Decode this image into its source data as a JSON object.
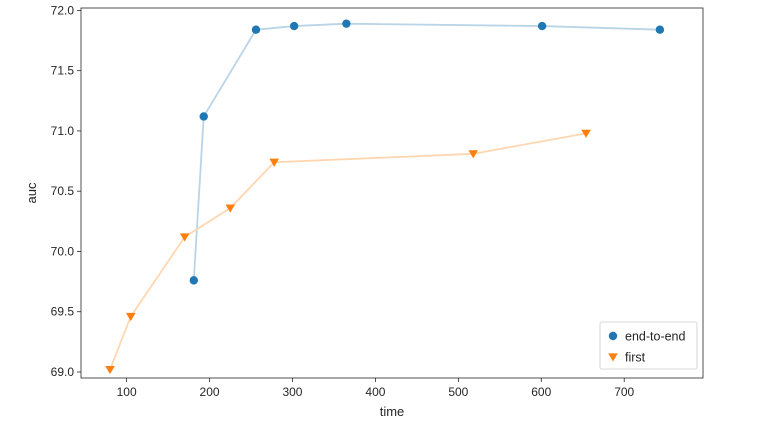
{
  "chart_data": {
    "type": "line",
    "xlabel": "time",
    "ylabel": "auc",
    "xlim": [
      45,
      795
    ],
    "ylim": [
      68.95,
      72.02
    ],
    "x_ticks": [
      100,
      200,
      300,
      400,
      500,
      600,
      700
    ],
    "y_ticks": [
      69.0,
      69.5,
      70.0,
      70.5,
      71.0,
      71.5,
      72.0
    ],
    "x_tick_labels": [
      "100",
      "200",
      "300",
      "400",
      "500",
      "600",
      "700"
    ],
    "y_tick_labels": [
      "69.0",
      "69.5",
      "70.0",
      "70.5",
      "71.0",
      "71.5",
      "72.0"
    ],
    "grid": false,
    "legend_position": "lower-right",
    "series": [
      {
        "name": "end-to-end",
        "marker": "circle",
        "marker_color": "#1f77b4",
        "line_color": "#b9d4e7",
        "x": [
          181,
          193,
          256,
          302,
          365,
          601,
          743
        ],
        "y": [
          69.76,
          71.12,
          71.84,
          71.87,
          71.89,
          71.87,
          71.84
        ]
      },
      {
        "name": "first",
        "marker": "triangle-down",
        "marker_color": "#ff7f0e",
        "line_color": "#ffd6b0",
        "x": [
          80,
          105,
          170,
          225,
          278,
          518,
          654
        ],
        "y": [
          69.02,
          69.46,
          70.12,
          70.36,
          70.74,
          70.81,
          70.98
        ]
      }
    ]
  }
}
